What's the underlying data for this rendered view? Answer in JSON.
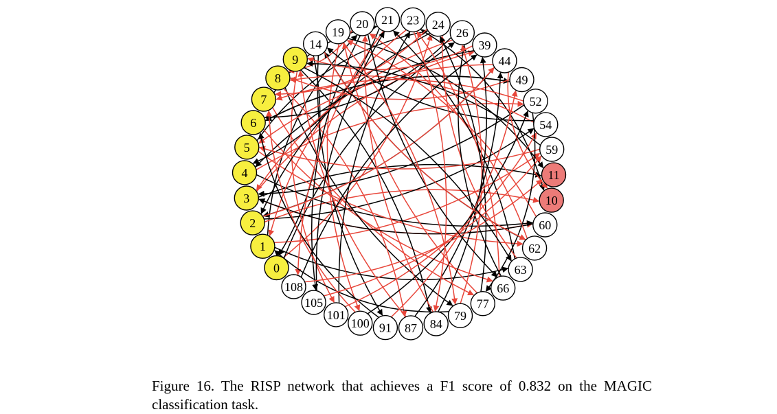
{
  "figure": {
    "caption": "Figure 16. The RISP network that achieves a F1 score of 0.832 on the MAGIC classification task."
  },
  "colors": {
    "input_node": "#f7ef3f",
    "output_node": "#ec7b78",
    "hidden_node": "#ffffff",
    "edge_black": "#000000",
    "edge_red": "#e8463a"
  },
  "nodes": [
    {
      "id": "0",
      "kind": "input"
    },
    {
      "id": "1",
      "kind": "input"
    },
    {
      "id": "2",
      "kind": "input"
    },
    {
      "id": "3",
      "kind": "input"
    },
    {
      "id": "4",
      "kind": "input"
    },
    {
      "id": "5",
      "kind": "input"
    },
    {
      "id": "6",
      "kind": "input"
    },
    {
      "id": "7",
      "kind": "input"
    },
    {
      "id": "8",
      "kind": "input"
    },
    {
      "id": "9",
      "kind": "input"
    },
    {
      "id": "14",
      "kind": "hidden"
    },
    {
      "id": "19",
      "kind": "hidden"
    },
    {
      "id": "20",
      "kind": "hidden"
    },
    {
      "id": "21",
      "kind": "hidden"
    },
    {
      "id": "23",
      "kind": "hidden"
    },
    {
      "id": "24",
      "kind": "hidden"
    },
    {
      "id": "26",
      "kind": "hidden"
    },
    {
      "id": "39",
      "kind": "hidden"
    },
    {
      "id": "44",
      "kind": "hidden"
    },
    {
      "id": "49",
      "kind": "hidden"
    },
    {
      "id": "52",
      "kind": "hidden"
    },
    {
      "id": "54",
      "kind": "hidden"
    },
    {
      "id": "59",
      "kind": "hidden"
    },
    {
      "id": "11",
      "kind": "output"
    },
    {
      "id": "10",
      "kind": "output"
    },
    {
      "id": "60",
      "kind": "hidden"
    },
    {
      "id": "62",
      "kind": "hidden"
    },
    {
      "id": "63",
      "kind": "hidden"
    },
    {
      "id": "66",
      "kind": "hidden"
    },
    {
      "id": "77",
      "kind": "hidden"
    },
    {
      "id": "79",
      "kind": "hidden"
    },
    {
      "id": "84",
      "kind": "hidden"
    },
    {
      "id": "87",
      "kind": "hidden"
    },
    {
      "id": "91",
      "kind": "hidden"
    },
    {
      "id": "100",
      "kind": "hidden"
    },
    {
      "id": "101",
      "kind": "hidden"
    },
    {
      "id": "105",
      "kind": "hidden"
    },
    {
      "id": "108",
      "kind": "hidden"
    }
  ],
  "edges": [
    {
      "from": "0",
      "to": "24",
      "color": "red"
    },
    {
      "from": "0",
      "to": "26",
      "color": "black"
    },
    {
      "from": "1",
      "to": "59",
      "color": "red"
    },
    {
      "from": "1",
      "to": "20",
      "color": "black"
    },
    {
      "from": "1",
      "to": "63",
      "color": "black"
    },
    {
      "from": "2",
      "to": "10",
      "color": "red"
    },
    {
      "from": "2",
      "to": "54",
      "color": "black"
    },
    {
      "from": "3",
      "to": "11",
      "color": "black"
    },
    {
      "from": "3",
      "to": "60",
      "color": "red"
    },
    {
      "from": "3",
      "to": "39",
      "color": "red"
    },
    {
      "from": "4",
      "to": "60",
      "color": "black"
    },
    {
      "from": "4",
      "to": "52",
      "color": "red"
    },
    {
      "from": "5",
      "to": "62",
      "color": "red"
    },
    {
      "from": "5",
      "to": "24",
      "color": "black"
    },
    {
      "from": "6",
      "to": "66",
      "color": "red"
    },
    {
      "from": "6",
      "to": "49",
      "color": "black"
    },
    {
      "from": "7",
      "to": "77",
      "color": "red"
    },
    {
      "from": "7",
      "to": "21",
      "color": "black"
    },
    {
      "from": "8",
      "to": "79",
      "color": "black"
    },
    {
      "from": "8",
      "to": "87",
      "color": "red"
    },
    {
      "from": "9",
      "to": "101",
      "color": "red"
    },
    {
      "from": "9",
      "to": "84",
      "color": "black"
    },
    {
      "from": "14",
      "to": "91",
      "color": "black"
    },
    {
      "from": "14",
      "to": "0",
      "color": "black"
    },
    {
      "from": "19",
      "to": "100",
      "color": "red"
    },
    {
      "from": "19",
      "to": "11",
      "color": "black"
    },
    {
      "from": "20",
      "to": "105",
      "color": "black"
    },
    {
      "from": "20",
      "to": "8",
      "color": "red"
    },
    {
      "from": "21",
      "to": "108",
      "color": "red"
    },
    {
      "from": "21",
      "to": "4",
      "color": "black"
    },
    {
      "from": "23",
      "to": "1",
      "color": "red"
    },
    {
      "from": "23",
      "to": "10",
      "color": "black"
    },
    {
      "from": "24",
      "to": "2",
      "color": "black"
    },
    {
      "from": "24",
      "to": "7",
      "color": "red"
    },
    {
      "from": "26",
      "to": "3",
      "color": "red"
    },
    {
      "from": "26",
      "to": "6",
      "color": "black"
    },
    {
      "from": "39",
      "to": "4",
      "color": "black"
    },
    {
      "from": "39",
      "to": "9",
      "color": "red"
    },
    {
      "from": "44",
      "to": "5",
      "color": "red"
    },
    {
      "from": "44",
      "to": "2",
      "color": "black"
    },
    {
      "from": "49",
      "to": "6",
      "color": "black"
    },
    {
      "from": "49",
      "to": "8",
      "color": "red"
    },
    {
      "from": "52",
      "to": "7",
      "color": "red"
    },
    {
      "from": "52",
      "to": "3",
      "color": "black"
    },
    {
      "from": "54",
      "to": "8",
      "color": "red"
    },
    {
      "from": "54",
      "to": "14",
      "color": "black"
    },
    {
      "from": "59",
      "to": "9",
      "color": "black"
    },
    {
      "from": "59",
      "to": "5",
      "color": "red"
    },
    {
      "from": "60",
      "to": "19",
      "color": "red"
    },
    {
      "from": "60",
      "to": "3",
      "color": "black"
    },
    {
      "from": "62",
      "to": "20",
      "color": "red"
    },
    {
      "from": "62",
      "to": "14",
      "color": "black"
    },
    {
      "from": "63",
      "to": "21",
      "color": "black"
    },
    {
      "from": "63",
      "to": "24",
      "color": "red"
    },
    {
      "from": "66",
      "to": "23",
      "color": "red"
    },
    {
      "from": "66",
      "to": "26",
      "color": "black"
    },
    {
      "from": "77",
      "to": "24",
      "color": "black"
    },
    {
      "from": "77",
      "to": "19",
      "color": "red"
    },
    {
      "from": "79",
      "to": "26",
      "color": "red"
    },
    {
      "from": "79",
      "to": "1",
      "color": "black"
    },
    {
      "from": "84",
      "to": "39",
      "color": "black"
    },
    {
      "from": "84",
      "to": "20",
      "color": "red"
    },
    {
      "from": "87",
      "to": "44",
      "color": "black"
    },
    {
      "from": "87",
      "to": "9",
      "color": "red"
    },
    {
      "from": "91",
      "to": "49",
      "color": "red"
    },
    {
      "from": "91",
      "to": "6",
      "color": "black"
    },
    {
      "from": "100",
      "to": "52",
      "color": "black"
    },
    {
      "from": "100",
      "to": "7",
      "color": "red"
    },
    {
      "from": "101",
      "to": "54",
      "color": "red"
    },
    {
      "from": "101",
      "to": "23",
      "color": "black"
    },
    {
      "from": "105",
      "to": "59",
      "color": "red"
    },
    {
      "from": "105",
      "to": "21",
      "color": "black"
    },
    {
      "from": "108",
      "to": "11",
      "color": "red"
    },
    {
      "from": "108",
      "to": "39",
      "color": "black"
    },
    {
      "from": "44",
      "to": "10",
      "color": "red"
    },
    {
      "from": "52",
      "to": "77",
      "color": "black"
    },
    {
      "from": "14",
      "to": "62",
      "color": "red"
    },
    {
      "from": "23",
      "to": "84",
      "color": "red"
    },
    {
      "from": "20",
      "to": "66",
      "color": "black"
    },
    {
      "from": "19",
      "to": "79",
      "color": "red"
    },
    {
      "from": "2",
      "to": "44",
      "color": "red"
    },
    {
      "from": "9",
      "to": "63",
      "color": "black"
    }
  ]
}
